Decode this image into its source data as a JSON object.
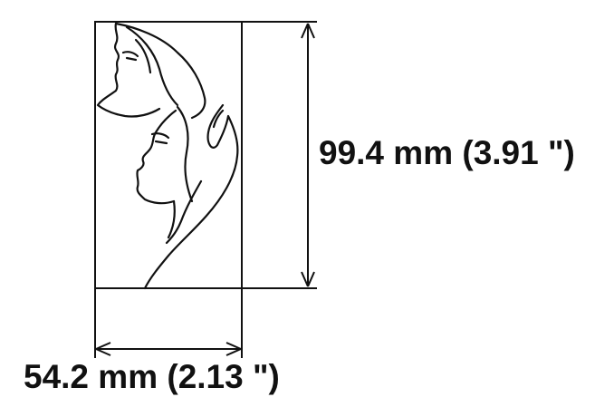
{
  "dimensions": {
    "height_label": "99.4 mm (3.91 \")",
    "width_label": "54.2 mm (2.13 \")"
  },
  "illustration": {
    "subject": "line-drawing-two-faces",
    "line_color": "#111111"
  },
  "colors": {
    "background": "#ffffff",
    "line": "#111111"
  }
}
